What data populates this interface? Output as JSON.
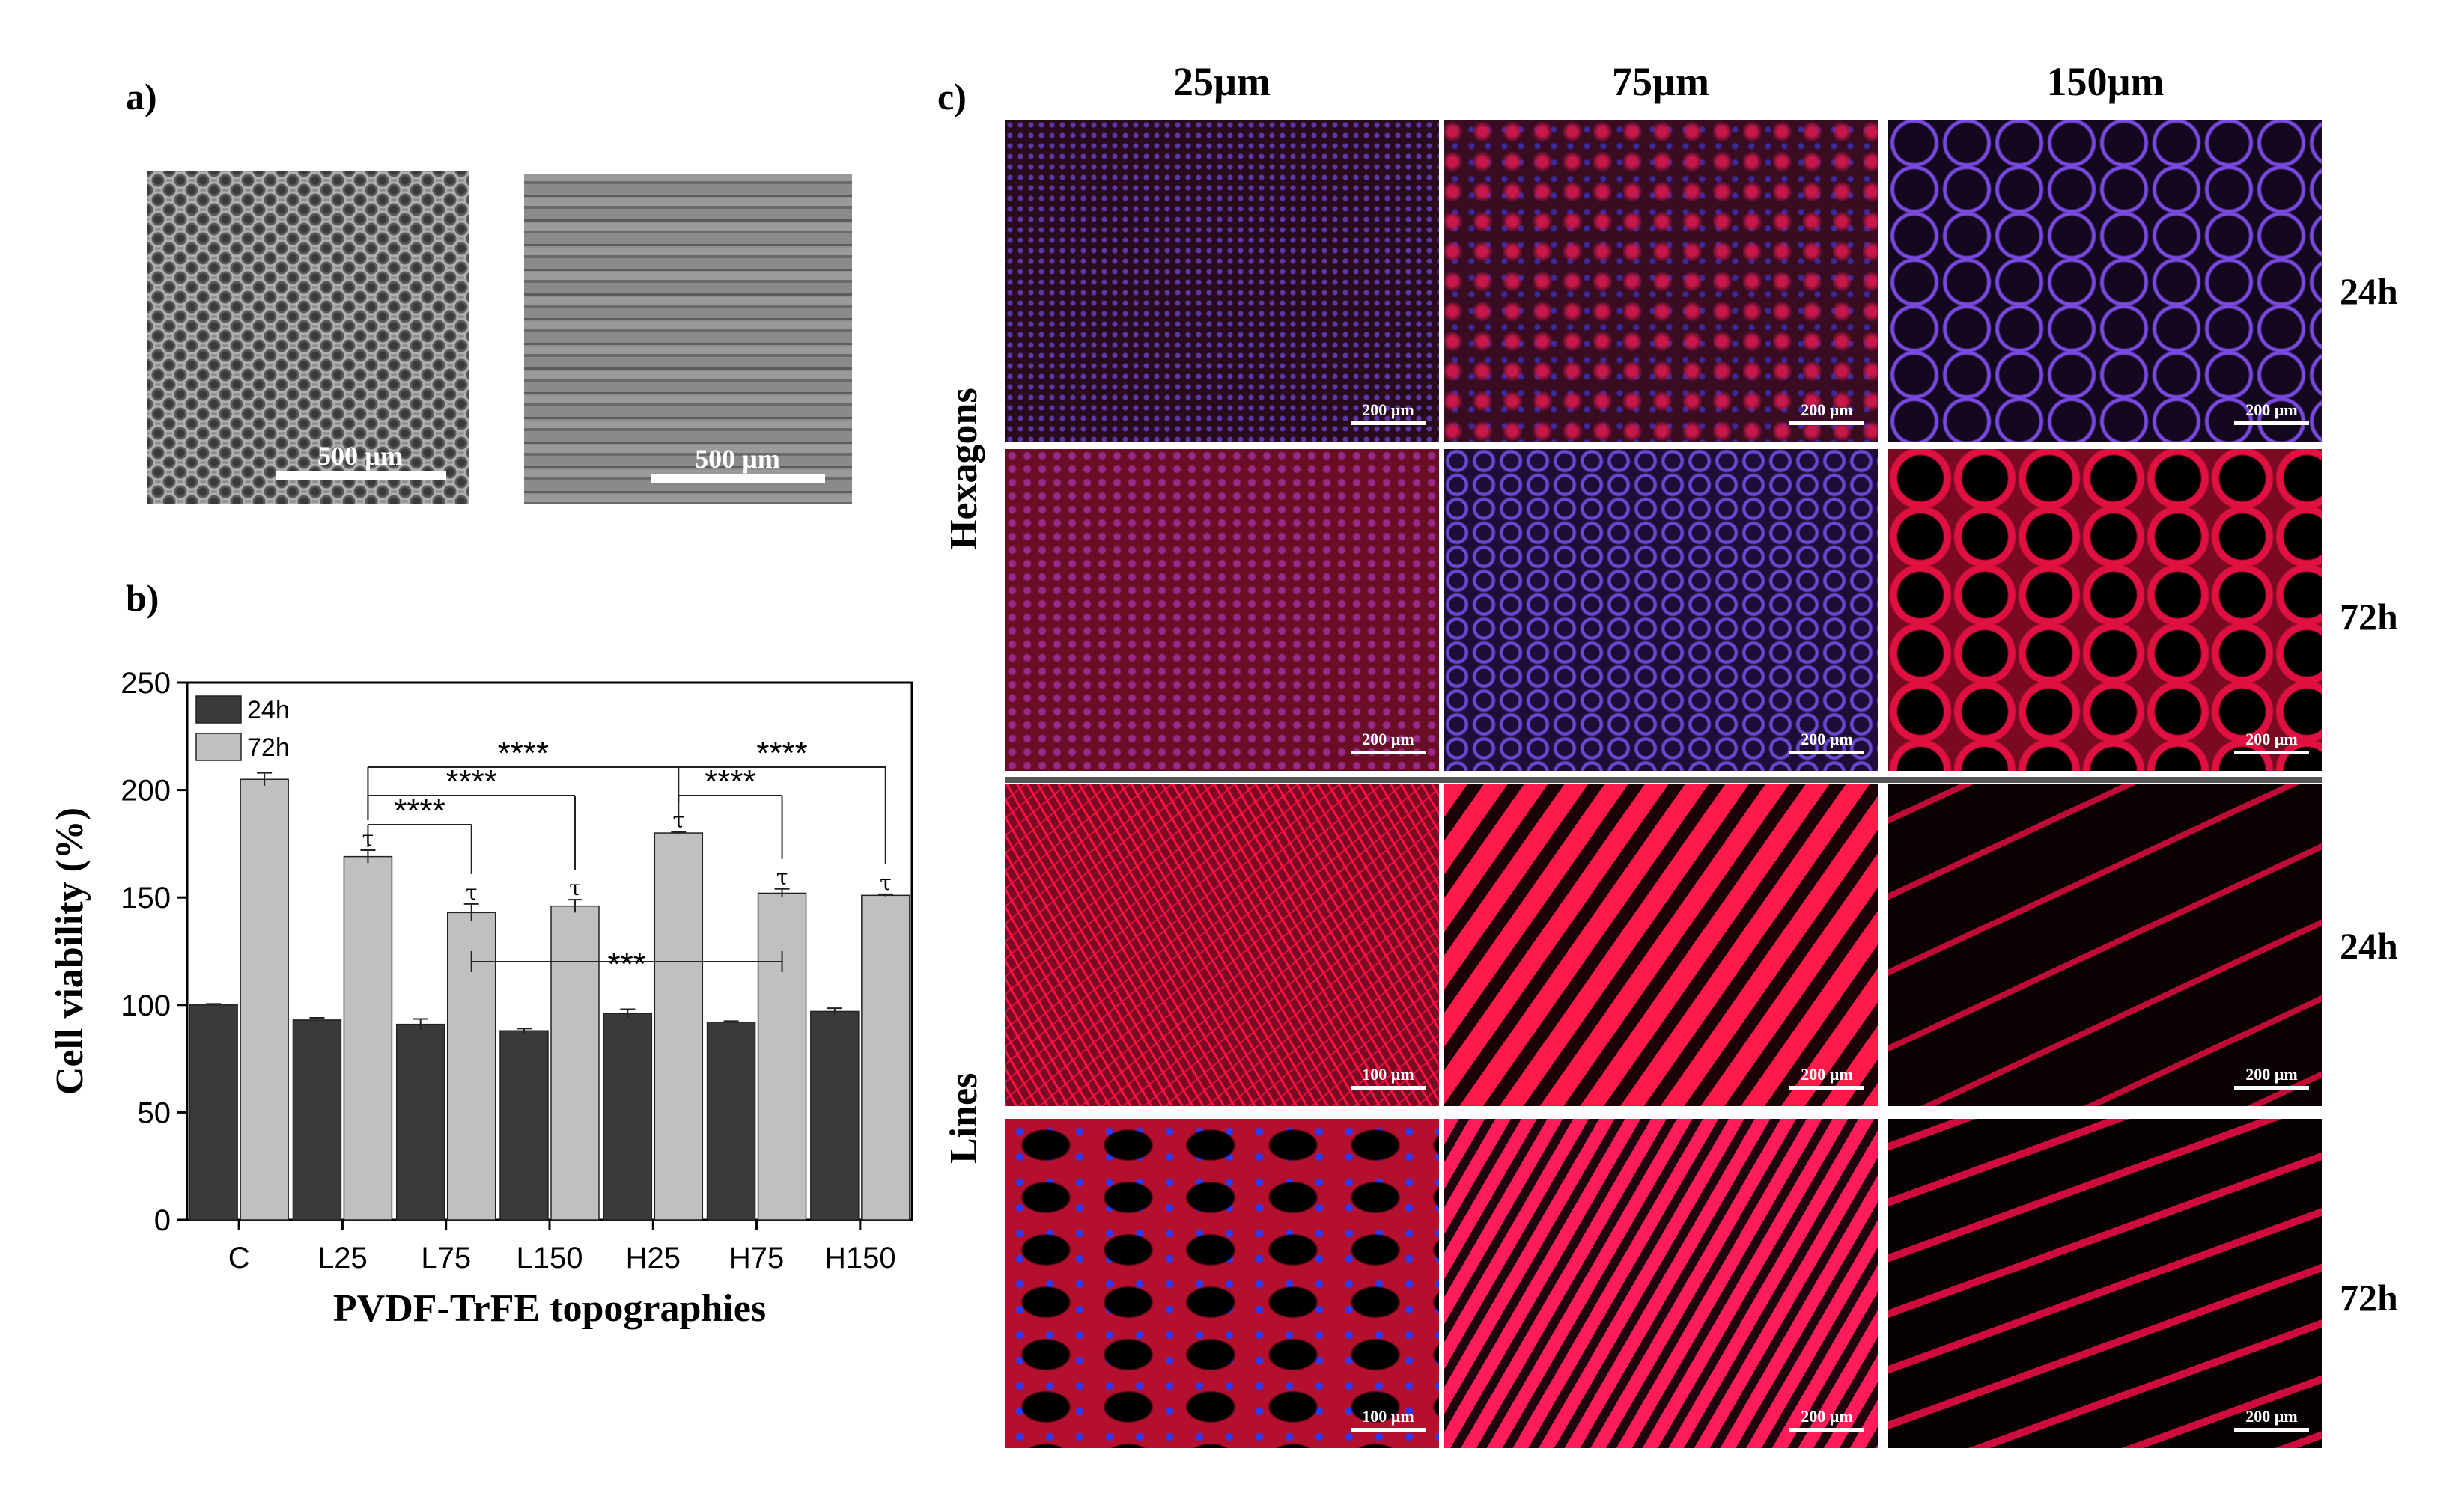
{
  "panels": {
    "a_label": "a)",
    "b_label": "b)",
    "c_label": "c)"
  },
  "sem": {
    "left_scale": "500 µm",
    "right_scale": "500 µm"
  },
  "chart_data": {
    "type": "bar",
    "title": "",
    "xlabel": "PVDF-TrFE topographies",
    "ylabel": "Cell viability (%)",
    "ylim": [
      0,
      250
    ],
    "yticks": [
      0,
      50,
      100,
      150,
      200,
      250
    ],
    "categories": [
      "C",
      "L25",
      "L75",
      "L150",
      "H25",
      "H75",
      "H150"
    ],
    "series": [
      {
        "name": "24h",
        "color": "#3a3a3a",
        "values": [
          100,
          93,
          91,
          88,
          96,
          92,
          97
        ],
        "errors": [
          0.5,
          1,
          2.5,
          1,
          2,
          0.5,
          1.5
        ]
      },
      {
        "name": "72h",
        "color": "#c0c0c0",
        "values": [
          205,
          169,
          143,
          146,
          180,
          152,
          151
        ],
        "errors": [
          3,
          3,
          4,
          3,
          0.5,
          2,
          0.5
        ]
      }
    ],
    "tau_marks": [
      "L25",
      "L75",
      "L150",
      "H25",
      "H75",
      "H150"
    ],
    "tau_symbol": "τ",
    "legend_position": "top-left",
    "significance": [
      {
        "label": "****",
        "from": "L25",
        "to": "H150",
        "via": "H25"
      },
      {
        "label": "****",
        "from": "L25",
        "to": "L150"
      },
      {
        "label": "****",
        "from": "L25",
        "to": "L75"
      },
      {
        "label": "****",
        "from": "H25",
        "to": "H150"
      },
      {
        "label": "****",
        "from": "H25",
        "to": "H75"
      },
      {
        "label": "***",
        "from": "L75",
        "to": "H75"
      }
    ]
  },
  "micrographs": {
    "columns": [
      "25µm",
      "75µm",
      "150µm"
    ],
    "rows": [
      "Hexagons",
      "Lines"
    ],
    "times": [
      "24h",
      "72h",
      "24h",
      "72h"
    ],
    "scales": [
      [
        "200 µm",
        "200 µm",
        "200 µm"
      ],
      [
        "200 µm",
        "200 µm",
        "200 µm"
      ],
      [
        "100 µm",
        "200 µm",
        "200 µm"
      ],
      [
        "100 µm",
        "200 µm",
        "200 µm"
      ]
    ]
  }
}
